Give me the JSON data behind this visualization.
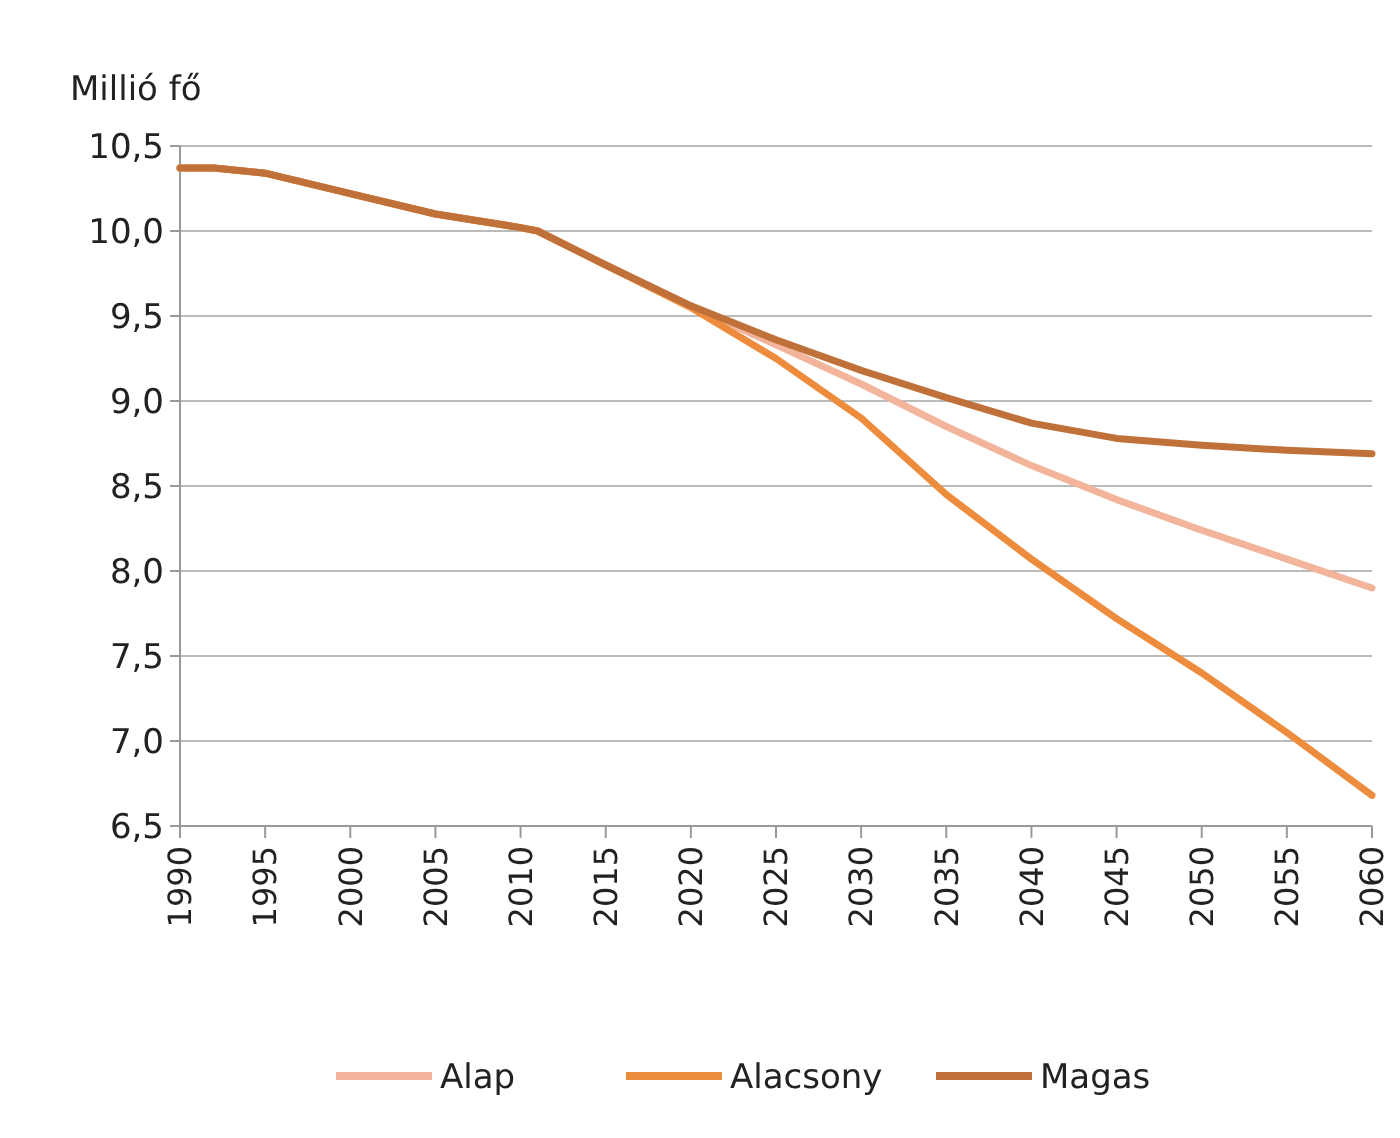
{
  "chart_data": {
    "type": "line",
    "ylabel": "Millió fő",
    "x": [
      1990,
      1992,
      1995,
      2000,
      2005,
      2010,
      2011,
      2015,
      2020,
      2025,
      2030,
      2035,
      2040,
      2045,
      2050,
      2055,
      2060
    ],
    "series": [
      {
        "name": "Alap",
        "color": "#f2b49a",
        "values": [
          10.37,
          10.37,
          10.34,
          10.22,
          10.1,
          10.02,
          10.0,
          9.8,
          9.56,
          9.33,
          9.1,
          8.85,
          8.62,
          8.42,
          8.24,
          8.07,
          7.9
        ]
      },
      {
        "name": "Alacsony",
        "color": "#ee8c3e",
        "values": [
          10.37,
          10.37,
          10.34,
          10.22,
          10.1,
          10.02,
          10.0,
          9.8,
          9.55,
          9.25,
          8.9,
          8.45,
          8.07,
          7.72,
          7.4,
          7.05,
          6.68
        ]
      },
      {
        "name": "Magas",
        "color": "#c0713a",
        "values": [
          10.37,
          10.37,
          10.34,
          10.22,
          10.1,
          10.02,
          10.0,
          9.8,
          9.56,
          9.36,
          9.18,
          9.02,
          8.87,
          8.78,
          8.74,
          8.71,
          8.69
        ]
      }
    ],
    "xlim": [
      1990,
      2060
    ],
    "xticks": [
      1990,
      1995,
      2000,
      2005,
      2010,
      2015,
      2020,
      2025,
      2030,
      2035,
      2040,
      2045,
      2050,
      2055,
      2060
    ],
    "ylim": [
      6.5,
      10.5
    ],
    "yticks": [
      {
        "value": 6.5,
        "label": "6,5"
      },
      {
        "value": 7,
        "label": "7,0"
      },
      {
        "value": 7.5,
        "label": "7,5"
      },
      {
        "value": 8,
        "label": "8,0"
      },
      {
        "value": 8.5,
        "label": "8,5"
      },
      {
        "value": 9,
        "label": "9,0"
      },
      {
        "value": 9.5,
        "label": "9,5"
      },
      {
        "value": 10,
        "label": "10,0"
      },
      {
        "value": 10.5,
        "label": "10,5"
      }
    ],
    "grid": "y",
    "legend": "bottom",
    "marker": "none",
    "line_style": "solid"
  }
}
